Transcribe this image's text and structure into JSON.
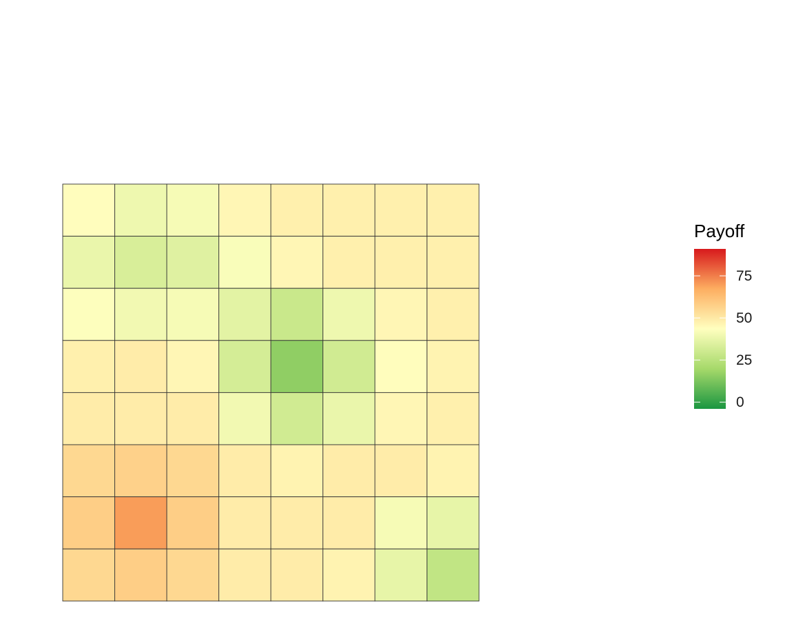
{
  "chart_data": {
    "type": "heatmap",
    "rows": 8,
    "cols": 8,
    "values": [
      [
        44,
        39,
        41,
        46,
        48,
        48,
        48,
        48
      ],
      [
        38,
        33,
        35,
        42,
        46,
        48,
        48,
        48
      ],
      [
        43,
        40,
        41,
        36,
        29,
        39,
        46,
        48
      ],
      [
        48,
        49,
        46,
        32,
        16,
        31,
        44,
        47
      ],
      [
        49,
        49,
        49,
        40,
        31,
        38,
        46,
        48
      ],
      [
        55,
        57,
        55,
        49,
        47,
        49,
        49,
        47
      ],
      [
        58,
        70,
        58,
        49,
        49,
        49,
        41,
        37
      ],
      [
        55,
        58,
        55,
        49,
        49,
        47,
        37,
        27
      ]
    ],
    "legend": {
      "title": "Payoff",
      "ticks": [
        0,
        25,
        50,
        75
      ],
      "tick_labels": [
        "0",
        "25",
        "50",
        "75"
      ],
      "range": [
        -4,
        91
      ],
      "colors": [
        "#1A9641",
        "#A6D96A",
        "#FFFFBF",
        "#FDAE61",
        "#D7191C"
      ],
      "placement": "right"
    },
    "grid_line_color": "#333333"
  }
}
